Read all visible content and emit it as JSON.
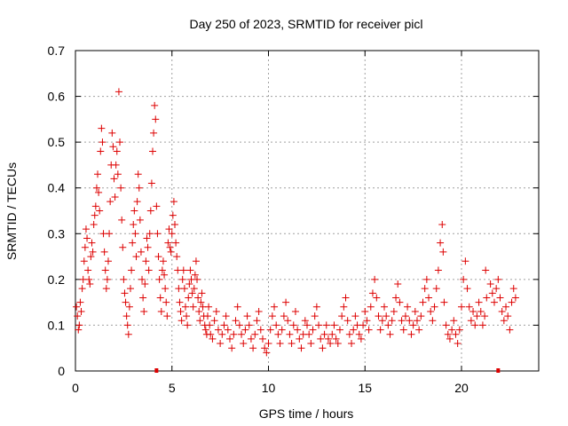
{
  "chart_data": {
    "type": "scatter",
    "title": "Day 250 of 2023, SRMTID for receiver picl",
    "xlabel": "GPS time / hours",
    "ylabel": "SRMTID / TECUs",
    "xlim": [
      0,
      24
    ],
    "ylim": [
      0,
      0.7
    ],
    "xticks": [
      0,
      5,
      10,
      15,
      20
    ],
    "yticks": [
      0,
      0.1,
      0.2,
      0.3,
      0.4,
      0.5,
      0.6,
      0.7
    ],
    "grid": true,
    "marker": "+",
    "color": "#dd0000",
    "series": [
      {
        "name": "SRMTID",
        "points": [
          [
            0.05,
            0.14
          ],
          [
            0.1,
            0.12
          ],
          [
            0.15,
            0.09
          ],
          [
            0.2,
            0.1
          ],
          [
            0.25,
            0.15
          ],
          [
            0.3,
            0.13
          ],
          [
            0.35,
            0.18
          ],
          [
            0.4,
            0.2
          ],
          [
            0.45,
            0.24
          ],
          [
            0.5,
            0.27
          ],
          [
            0.55,
            0.31
          ],
          [
            0.6,
            0.29
          ],
          [
            0.65,
            0.22
          ],
          [
            0.7,
            0.2
          ],
          [
            0.75,
            0.19
          ],
          [
            0.8,
            0.25
          ],
          [
            0.85,
            0.28
          ],
          [
            0.9,
            0.26
          ],
          [
            0.95,
            0.32
          ],
          [
            1.0,
            0.34
          ],
          [
            1.05,
            0.36
          ],
          [
            1.1,
            0.4
          ],
          [
            1.15,
            0.43
          ],
          [
            1.2,
            0.39
          ],
          [
            1.25,
            0.35
          ],
          [
            1.3,
            0.48
          ],
          [
            1.35,
            0.53
          ],
          [
            1.4,
            0.5
          ],
          [
            1.45,
            0.3
          ],
          [
            1.5,
            0.26
          ],
          [
            1.55,
            0.22
          ],
          [
            1.6,
            0.18
          ],
          [
            1.65,
            0.2
          ],
          [
            1.7,
            0.24
          ],
          [
            1.75,
            0.3
          ],
          [
            1.8,
            0.37
          ],
          [
            1.85,
            0.45
          ],
          [
            1.9,
            0.52
          ],
          [
            1.95,
            0.49
          ],
          [
            2.0,
            0.42
          ],
          [
            2.05,
            0.38
          ],
          [
            2.1,
            0.45
          ],
          [
            2.15,
            0.48
          ],
          [
            2.2,
            0.43
          ],
          [
            2.25,
            0.61
          ],
          [
            2.3,
            0.5
          ],
          [
            2.35,
            0.4
          ],
          [
            2.4,
            0.33
          ],
          [
            2.45,
            0.27
          ],
          [
            2.5,
            0.2
          ],
          [
            2.55,
            0.17
          ],
          [
            2.6,
            0.15
          ],
          [
            2.65,
            0.12
          ],
          [
            2.7,
            0.1
          ],
          [
            2.75,
            0.08
          ],
          [
            2.8,
            0.14
          ],
          [
            2.85,
            0.18
          ],
          [
            2.9,
            0.22
          ],
          [
            2.95,
            0.28
          ],
          [
            3.0,
            0.32
          ],
          [
            3.05,
            0.35
          ],
          [
            3.1,
            0.3
          ],
          [
            3.15,
            0.25
          ],
          [
            3.2,
            0.37
          ],
          [
            3.25,
            0.43
          ],
          [
            3.3,
            0.4
          ],
          [
            3.35,
            0.33
          ],
          [
            3.4,
            0.26
          ],
          [
            3.45,
            0.2
          ],
          [
            3.5,
            0.16
          ],
          [
            3.55,
            0.13
          ],
          [
            3.6,
            0.19
          ],
          [
            3.65,
            0.24
          ],
          [
            3.7,
            0.29
          ],
          [
            3.75,
            0.27
          ],
          [
            3.8,
            0.22
          ],
          [
            3.85,
            0.3
          ],
          [
            3.9,
            0.35
          ],
          [
            3.95,
            0.41
          ],
          [
            4.0,
            0.48
          ],
          [
            4.05,
            0.52
          ],
          [
            4.1,
            0.58
          ],
          [
            4.15,
            0.55
          ],
          [
            4.2,
            0.36
          ],
          [
            4.25,
            0.3
          ],
          [
            4.3,
            0.25
          ],
          [
            4.35,
            0.2
          ],
          [
            4.4,
            0.16
          ],
          [
            4.45,
            0.13
          ],
          [
            4.5,
            0.22
          ],
          [
            4.55,
            0.24
          ],
          [
            4.6,
            0.21
          ],
          [
            4.65,
            0.18
          ],
          [
            4.7,
            0.15
          ],
          [
            4.75,
            0.12
          ],
          [
            4.8,
            0.28
          ],
          [
            4.85,
            0.31
          ],
          [
            4.9,
            0.27
          ],
          [
            4.95,
            0.26
          ],
          [
            5.0,
            0.3
          ],
          [
            5.05,
            0.34
          ],
          [
            5.1,
            0.37
          ],
          [
            5.15,
            0.32
          ],
          [
            5.2,
            0.28
          ],
          [
            5.25,
            0.25
          ],
          [
            5.3,
            0.22
          ],
          [
            5.35,
            0.18
          ],
          [
            5.4,
            0.15
          ],
          [
            5.45,
            0.13
          ],
          [
            5.5,
            0.11
          ],
          [
            5.55,
            0.2
          ],
          [
            5.6,
            0.22
          ],
          [
            5.65,
            0.18
          ],
          [
            5.7,
            0.14
          ],
          [
            5.75,
            0.12
          ],
          [
            5.8,
            0.1
          ],
          [
            5.85,
            0.16
          ],
          [
            5.9,
            0.19
          ],
          [
            5.95,
            0.22
          ],
          [
            6.0,
            0.2
          ],
          [
            6.05,
            0.17
          ],
          [
            6.1,
            0.14
          ],
          [
            6.15,
            0.18
          ],
          [
            6.2,
            0.21
          ],
          [
            6.25,
            0.24
          ],
          [
            6.3,
            0.2
          ],
          [
            6.35,
            0.16
          ],
          [
            6.4,
            0.13
          ],
          [
            6.45,
            0.11
          ],
          [
            6.5,
            0.15
          ],
          [
            6.55,
            0.17
          ],
          [
            6.6,
            0.14
          ],
          [
            6.65,
            0.12
          ],
          [
            6.7,
            0.1
          ],
          [
            6.75,
            0.09
          ],
          [
            6.8,
            0.08
          ],
          [
            6.85,
            0.12
          ],
          [
            6.9,
            0.14
          ],
          [
            6.95,
            0.1
          ],
          [
            7.0,
            0.08
          ],
          [
            7.1,
            0.07
          ],
          [
            7.2,
            0.11
          ],
          [
            7.3,
            0.13
          ],
          [
            7.4,
            0.09
          ],
          [
            7.5,
            0.06
          ],
          [
            7.6,
            0.08
          ],
          [
            7.7,
            0.1
          ],
          [
            7.8,
            0.12
          ],
          [
            7.9,
            0.09
          ],
          [
            8.0,
            0.07
          ],
          [
            8.1,
            0.05
          ],
          [
            8.2,
            0.08
          ],
          [
            8.3,
            0.11
          ],
          [
            8.4,
            0.14
          ],
          [
            8.5,
            0.1
          ],
          [
            8.6,
            0.08
          ],
          [
            8.7,
            0.06
          ],
          [
            8.8,
            0.09
          ],
          [
            8.9,
            0.12
          ],
          [
            9.0,
            0.1
          ],
          [
            9.1,
            0.07
          ],
          [
            9.2,
            0.05
          ],
          [
            9.3,
            0.08
          ],
          [
            9.4,
            0.11
          ],
          [
            9.5,
            0.13
          ],
          [
            9.6,
            0.09
          ],
          [
            9.7,
            0.07
          ],
          [
            9.8,
            0.05
          ],
          [
            9.9,
            0.04
          ],
          [
            10.0,
            0.06
          ],
          [
            10.1,
            0.09
          ],
          [
            10.2,
            0.12
          ],
          [
            10.3,
            0.14
          ],
          [
            10.4,
            0.1
          ],
          [
            10.5,
            0.08
          ],
          [
            10.6,
            0.06
          ],
          [
            10.7,
            0.09
          ],
          [
            10.8,
            0.12
          ],
          [
            10.9,
            0.15
          ],
          [
            11.0,
            0.11
          ],
          [
            11.1,
            0.08
          ],
          [
            11.2,
            0.06
          ],
          [
            11.3,
            0.1
          ],
          [
            11.4,
            0.13
          ],
          [
            11.5,
            0.09
          ],
          [
            11.6,
            0.07
          ],
          [
            11.7,
            0.05
          ],
          [
            11.8,
            0.08
          ],
          [
            11.9,
            0.11
          ],
          [
            12.0,
            0.1
          ],
          [
            12.1,
            0.08
          ],
          [
            12.2,
            0.06
          ],
          [
            12.3,
            0.09
          ],
          [
            12.4,
            0.12
          ],
          [
            12.5,
            0.14
          ],
          [
            12.6,
            0.1
          ],
          [
            12.7,
            0.07
          ],
          [
            12.8,
            0.05
          ],
          [
            12.9,
            0.08
          ],
          [
            13.0,
            0.1
          ],
          [
            13.1,
            0.07
          ],
          [
            13.2,
            0.06
          ],
          [
            13.3,
            0.08
          ],
          [
            13.4,
            0.1
          ],
          [
            13.5,
            0.07
          ],
          [
            13.6,
            0.06
          ],
          [
            13.7,
            0.09
          ],
          [
            13.8,
            0.12
          ],
          [
            13.9,
            0.14
          ],
          [
            14.0,
            0.16
          ],
          [
            14.1,
            0.11
          ],
          [
            14.2,
            0.08
          ],
          [
            14.3,
            0.06
          ],
          [
            14.4,
            0.09
          ],
          [
            14.5,
            0.12
          ],
          [
            14.6,
            0.1
          ],
          [
            14.7,
            0.08
          ],
          [
            14.8,
            0.07
          ],
          [
            14.9,
            0.1
          ],
          [
            15.0,
            0.13
          ],
          [
            15.1,
            0.11
          ],
          [
            15.2,
            0.09
          ],
          [
            15.3,
            0.14
          ],
          [
            15.4,
            0.17
          ],
          [
            15.5,
            0.2
          ],
          [
            15.6,
            0.16
          ],
          [
            15.7,
            0.12
          ],
          [
            15.8,
            0.09
          ],
          [
            15.9,
            0.11
          ],
          [
            16.0,
            0.14
          ],
          [
            16.1,
            0.12
          ],
          [
            16.2,
            0.1
          ],
          [
            16.3,
            0.08
          ],
          [
            16.4,
            0.11
          ],
          [
            16.5,
            0.13
          ],
          [
            16.6,
            0.16
          ],
          [
            16.7,
            0.19
          ],
          [
            16.8,
            0.15
          ],
          [
            16.9,
            0.11
          ],
          [
            17.0,
            0.09
          ],
          [
            17.1,
            0.12
          ],
          [
            17.2,
            0.14
          ],
          [
            17.3,
            0.11
          ],
          [
            17.4,
            0.08
          ],
          [
            17.5,
            0.1
          ],
          [
            17.6,
            0.13
          ],
          [
            17.7,
            0.11
          ],
          [
            17.8,
            0.09
          ],
          [
            17.9,
            0.12
          ],
          [
            18.0,
            0.15
          ],
          [
            18.1,
            0.18
          ],
          [
            18.2,
            0.2
          ],
          [
            18.3,
            0.16
          ],
          [
            18.4,
            0.13
          ],
          [
            18.5,
            0.11
          ],
          [
            18.6,
            0.14
          ],
          [
            18.7,
            0.18
          ],
          [
            18.8,
            0.22
          ],
          [
            18.9,
            0.28
          ],
          [
            19.0,
            0.32
          ],
          [
            19.05,
            0.26
          ],
          [
            19.1,
            0.15
          ],
          [
            19.2,
            0.1
          ],
          [
            19.3,
            0.08
          ],
          [
            19.4,
            0.07
          ],
          [
            19.5,
            0.09
          ],
          [
            19.6,
            0.11
          ],
          [
            19.7,
            0.08
          ],
          [
            19.8,
            0.06
          ],
          [
            19.9,
            0.09
          ],
          [
            20.0,
            0.14
          ],
          [
            20.1,
            0.2
          ],
          [
            20.2,
            0.24
          ],
          [
            20.3,
            0.18
          ],
          [
            20.4,
            0.14
          ],
          [
            20.5,
            0.11
          ],
          [
            20.6,
            0.13
          ],
          [
            20.7,
            0.1
          ],
          [
            20.8,
            0.12
          ],
          [
            20.9,
            0.15
          ],
          [
            21.0,
            0.13
          ],
          [
            21.1,
            0.1
          ],
          [
            21.2,
            0.12
          ],
          [
            21.25,
            0.22
          ],
          [
            21.3,
            0.16
          ],
          [
            21.5,
            0.19
          ],
          [
            21.6,
            0.17
          ],
          [
            21.7,
            0.15
          ],
          [
            21.8,
            0.18
          ],
          [
            21.9,
            0.2
          ],
          [
            22.0,
            0.16
          ],
          [
            22.1,
            0.13
          ],
          [
            22.2,
            0.11
          ],
          [
            22.3,
            0.14
          ],
          [
            22.4,
            0.12
          ],
          [
            22.5,
            0.09
          ],
          [
            22.6,
            0.15
          ],
          [
            22.7,
            0.18
          ],
          [
            22.8,
            0.16
          ]
        ]
      }
    ],
    "axis_markers_x": [
      4.2,
      21.9
    ]
  }
}
